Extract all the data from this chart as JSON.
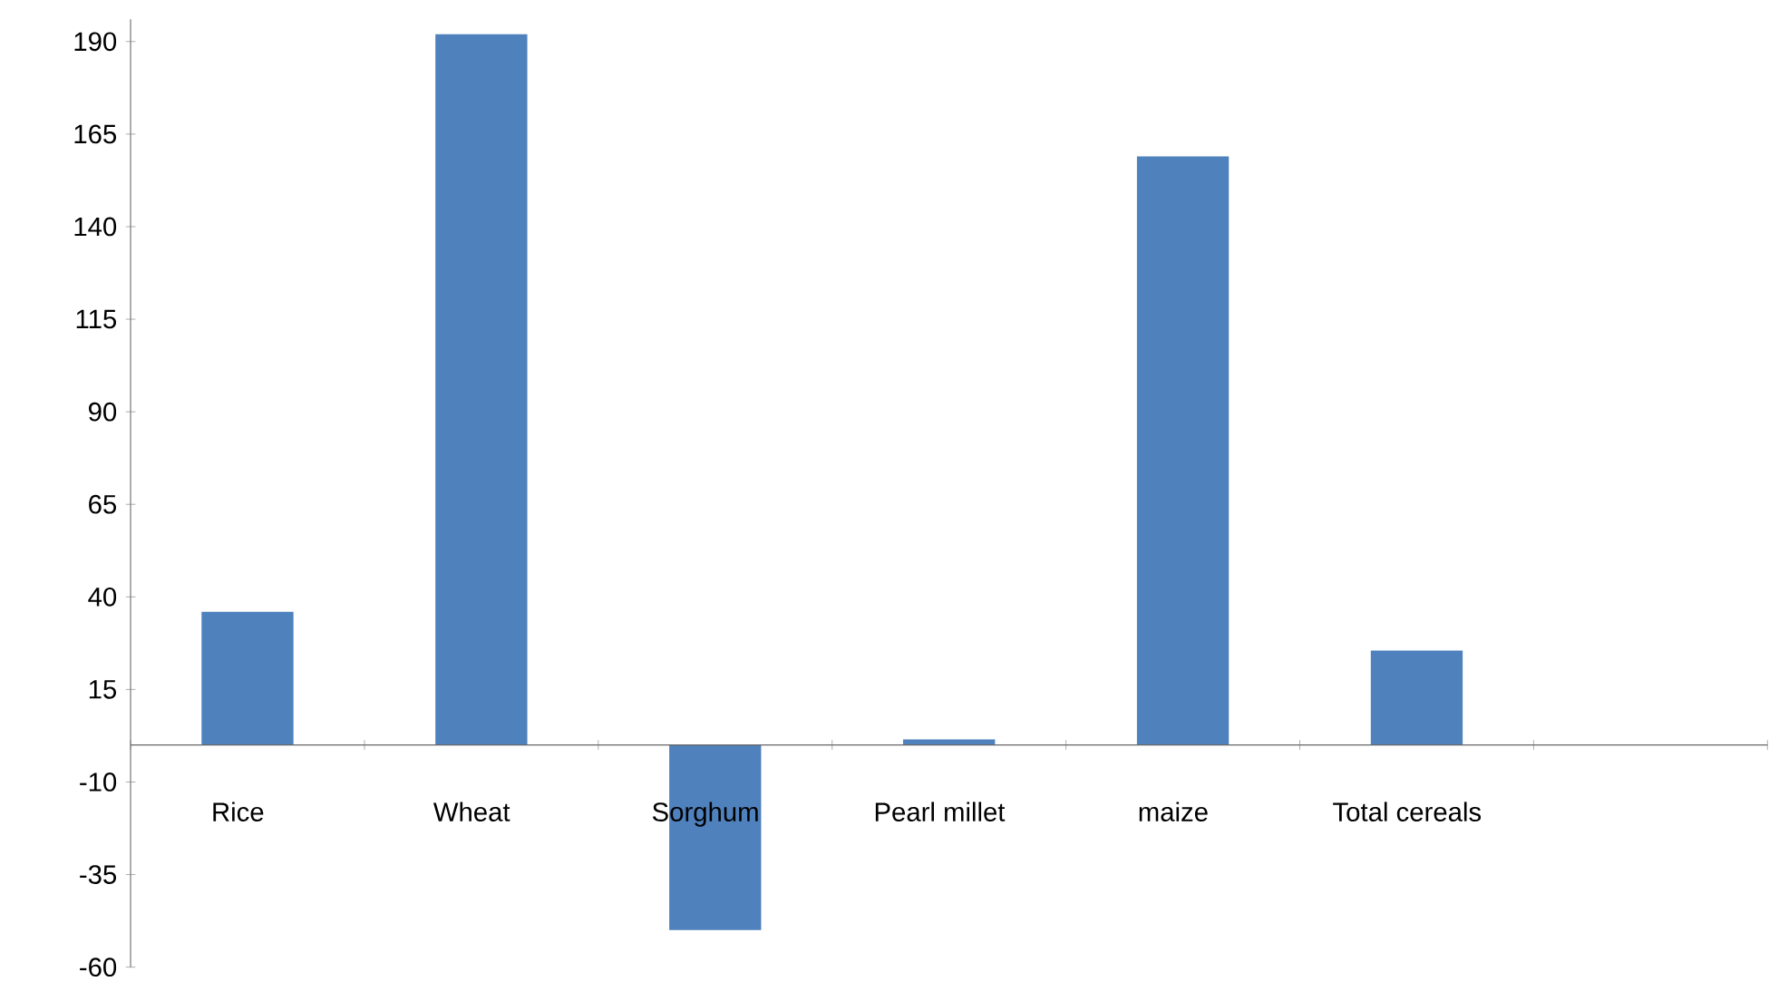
{
  "chart_data": {
    "type": "bar",
    "categories": [
      "Rice",
      "Wheat",
      "Sorghum",
      "Pearl millet",
      "maize",
      "Total cereals",
      null
    ],
    "values": [
      36,
      192,
      -50,
      1.5,
      159,
      25.5,
      null
    ],
    "color": "#4f81bd",
    "ylim": [
      -60,
      196
    ],
    "yticks": [
      -60,
      -35,
      -10,
      15,
      40,
      65,
      90,
      115,
      140,
      165,
      190
    ],
    "grid": false
  }
}
